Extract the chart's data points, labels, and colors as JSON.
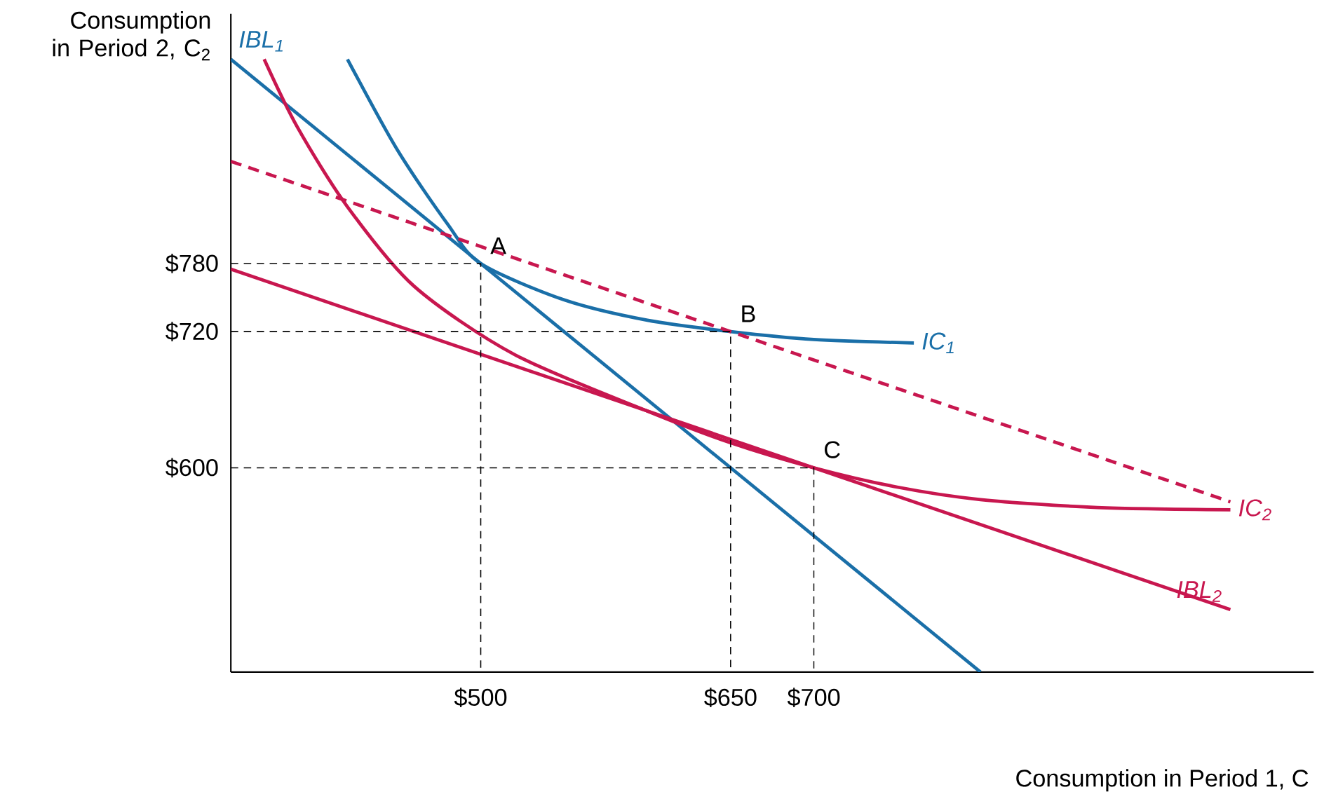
{
  "chart_data": {
    "type": "line",
    "xlabel": "Consumption in Period 1, C",
    "ylabel": "Consumption in Period 2, C$_{2}$",
    "xlim": [
      350,
      1000
    ],
    "ylim": [
      420,
      1000
    ],
    "xticks": [
      {
        "value": 500,
        "label": "$500"
      },
      {
        "value": 650,
        "label": "$650"
      },
      {
        "value": 700,
        "label": "$700"
      }
    ],
    "yticks": [
      {
        "value": 600,
        "label": "$600"
      },
      {
        "value": 720,
        "label": "$720"
      },
      {
        "value": 780,
        "label": "$780"
      }
    ],
    "marker": "none",
    "series": [
      {
        "name": "IBL$_{1}$",
        "color": "#1a6fa8",
        "x": [
          350,
          800
        ],
        "values": [
          960,
          420
        ]
      },
      {
        "name": "IC$_{1}$",
        "color": "#1a6fa8",
        "x": [
          420,
          450,
          480,
          500,
          550,
          600,
          650,
          700,
          760
        ],
        "values": [
          960,
          880,
          815,
          780,
          748,
          730,
          720,
          713,
          710
        ]
      },
      {
        "color": "#c8174f",
        "line_style": "dashed",
        "x": [
          350,
          950
        ],
        "values": [
          870,
          570
        ]
      },
      {
        "name": "IC$_{2}$",
        "color": "#c8174f",
        "x": [
          370,
          390,
          420,
          460,
          520,
          600,
          650,
          700,
          750,
          800,
          870,
          950
        ],
        "values": [
          960,
          900,
          830,
          760,
          700,
          650,
          622,
          600,
          583,
          572,
          565,
          563
        ]
      },
      {
        "name": "IBL$_{2}$",
        "color": "#c8174f",
        "x": [
          350,
          950
        ],
        "values": [
          775,
          475
        ]
      },
      {
        "color": "#000000",
        "line_style": "dashed",
        "x": [
          350,
          500,
          500
        ],
        "values": [
          780,
          780,
          420
        ]
      },
      {
        "color": "#000000",
        "line_style": "dashed",
        "x": [
          350,
          650,
          650
        ],
        "values": [
          720,
          720,
          420
        ]
      },
      {
        "color": "#000000",
        "line_style": "dashed",
        "x": [
          350,
          700,
          700
        ],
        "values": [
          600,
          600,
          420
        ]
      }
    ],
    "annotations": [
      {
        "text": "A",
        "x": 500,
        "y": 780
      },
      {
        "text": "B",
        "x": 650,
        "y": 720
      },
      {
        "text": "C",
        "x": 700,
        "y": 600
      }
    ]
  }
}
